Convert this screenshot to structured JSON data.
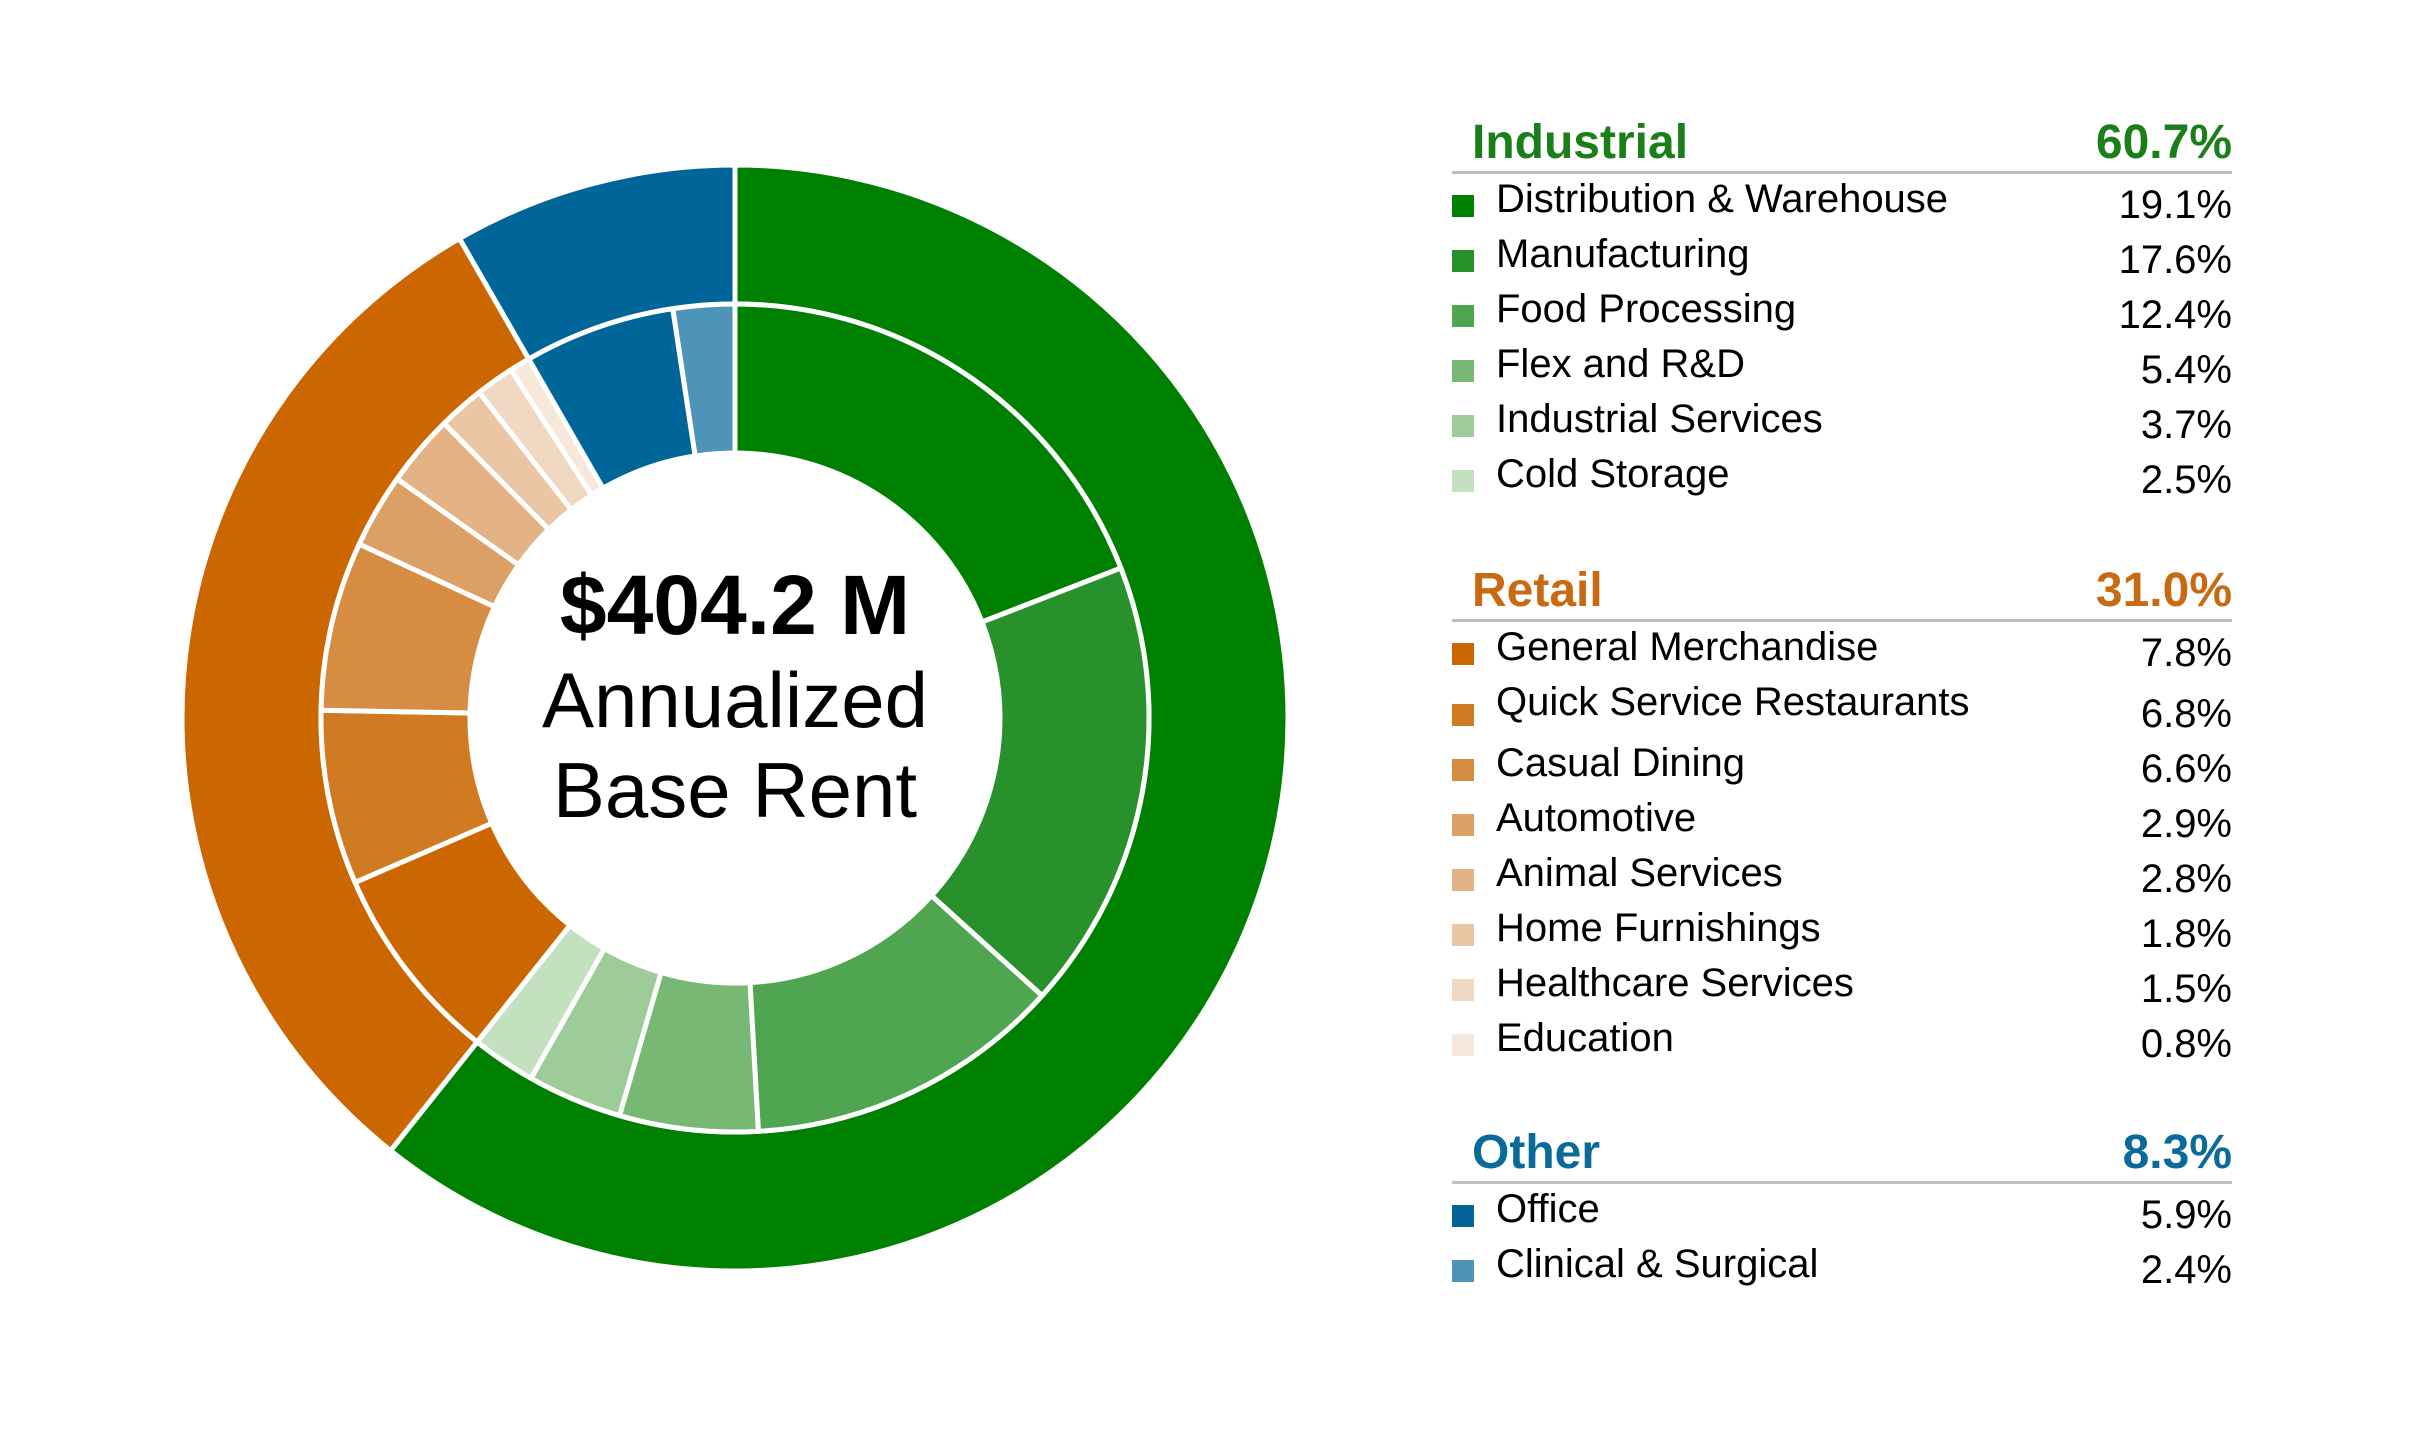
{
  "center": {
    "amount": "$404.2 M",
    "line1": "Annualized",
    "line2": "Base Rent"
  },
  "chart_data": {
    "type": "nested-donut",
    "groups": [
      {
        "name": "Industrial",
        "total": "60.7%",
        "value": 60.7,
        "color": "#008000",
        "items": [
          {
            "label": "Distribution & Warehouse",
            "value_text": "19.1%",
            "value": 19.1,
            "color": "#008000"
          },
          {
            "label": "Manufacturing",
            "value_text": "17.6%",
            "value": 17.6,
            "color": "#29912B"
          },
          {
            "label": "Food Processing",
            "value_text": "12.4%",
            "value": 12.4,
            "color": "#50A550"
          },
          {
            "label": "Flex and R&D",
            "value_text": "5.4%",
            "value": 5.4,
            "color": "#76B874"
          },
          {
            "label": "Industrial Services",
            "value_text": "3.7%",
            "value": 3.7,
            "color": "#9DCC98"
          },
          {
            "label": "Cold Storage",
            "value_text": "2.5%",
            "value": 2.5,
            "color": "#C3E0BF"
          }
        ]
      },
      {
        "name": "Retail",
        "total": "31.0%",
        "value": 31.0,
        "color": "#CC6600",
        "items": [
          {
            "label": "General Merchandise",
            "value_text": "7.8%",
            "value": 7.8,
            "color": "#CC6600"
          },
          {
            "label": "Quick Service Restaurants",
            "value_text": "6.8%",
            "value": 6.8,
            "color": "#D07A22"
          },
          {
            "label": "Casual Dining",
            "value_text": "6.6%",
            "value": 6.6,
            "color": "#D68C43"
          },
          {
            "label": "Automotive",
            "value_text": "2.9%",
            "value": 2.9,
            "color": "#DC9F65"
          },
          {
            "label": "Animal Services",
            "value_text": "2.8%",
            "value": 2.8,
            "color": "#E3B386"
          },
          {
            "label": "Home Furnishings",
            "value_text": "1.8%",
            "value": 1.8,
            "color": "#EBC6A4"
          },
          {
            "label": "Healthcare Services",
            "value_text": "1.5%",
            "value": 1.5,
            "color": "#F0D8C2"
          },
          {
            "label": "Education",
            "value_text": "0.8%",
            "value": 0.8,
            "color": "#F6E8DB"
          }
        ]
      },
      {
        "name": "Other",
        "total": "8.3%",
        "value": 8.3,
        "color": "#006699",
        "items": [
          {
            "label": "Office",
            "value_text": "5.9%",
            "value": 5.9,
            "color": "#006699"
          },
          {
            "label": "Clinical & Surgical",
            "value_text": "2.4%",
            "value": 2.4,
            "color": "#4D94B8"
          }
        ]
      }
    ]
  }
}
